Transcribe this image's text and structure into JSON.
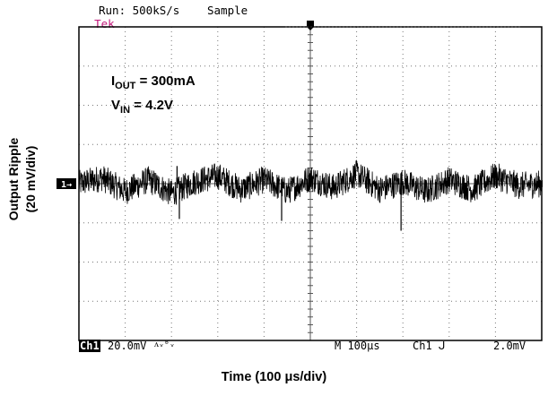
{
  "header": {
    "brand": "Tek",
    "run_text": "Run: 500kS/s",
    "mode_text": "Sample"
  },
  "axes": {
    "ylabel_line1": "Output Ripple",
    "ylabel_line2": "(20 mV/div)",
    "xlabel": "Time (100 μs/div)"
  },
  "annotations": {
    "iout_main": "I",
    "iout_sub": "OUT",
    "iout_rest": " = 300mA",
    "vin_main": "V",
    "vin_sub": "IN",
    "vin_rest": " = 4.2V"
  },
  "status": {
    "channel_label": "Ch1",
    "ch1_scale": "20.0mV",
    "coupling_glyph": "ᴧᵥᴮᵥ",
    "timebase": "M 100μs",
    "trigger": "Ch1 ᒍ",
    "trigger_level": "2.0mV"
  },
  "marker": {
    "channel": "1→"
  },
  "colors": {
    "brand": "#c2187a",
    "trace": "#000000"
  },
  "chart_data": {
    "type": "line",
    "title": "",
    "xlabel": "Time (100 μs/div)",
    "ylabel": "Output Ripple (20 mV/div)",
    "x_divisions": 10,
    "y_divisions": 8,
    "grid": true,
    "x_unit": "μs",
    "y_unit": "mV",
    "xlim": [
      0,
      1000
    ],
    "ylim": [
      -80,
      80
    ],
    "series": [
      {
        "description": "output ripple noise band, ~±5 mV with occasional spikes",
        "x": [
          0,
          50,
          100,
          150,
          200,
          250,
          300,
          350,
          400,
          450,
          500,
          550,
          600,
          650,
          700,
          750,
          800,
          850,
          900,
          950,
          1000
        ],
        "y": [
          0,
          3,
          -4,
          2,
          -5,
          1,
          4,
          -3,
          2,
          -4,
          3,
          -2,
          5,
          -3,
          1,
          -4,
          2,
          -3,
          4,
          -1,
          0
        ]
      }
    ],
    "spikes": [
      {
        "x": 217,
        "y": -18
      },
      {
        "x": 438,
        "y": -19
      },
      {
        "x": 696,
        "y": -24
      },
      {
        "x": 212,
        "y": 9
      }
    ]
  }
}
